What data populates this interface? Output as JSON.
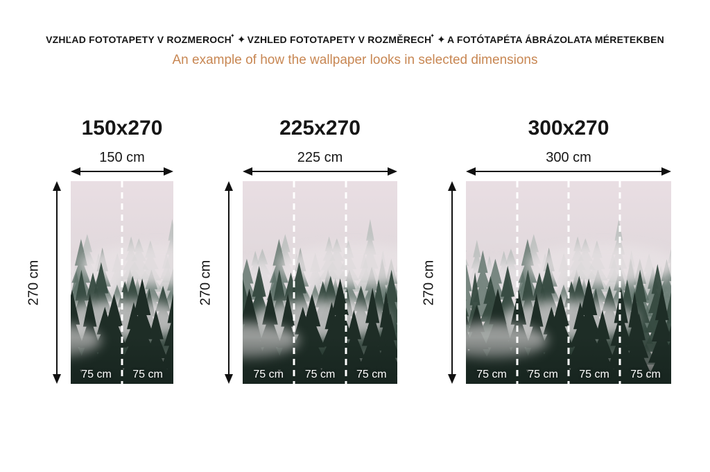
{
  "header": {
    "title_segments": [
      "VZHĽAD FOTOTAPETY V ROZMEROCH",
      "VZHLED FOTOTAPETY V ROZMĚRECH",
      "A FOTÓTAPÉTA ÁBRÁZOLATA MÉRETEKBEN"
    ],
    "divider_icon": "✦",
    "divider_icon_small": "✦",
    "subtitle": "An example of how the wallpaper looks in selected dimensions"
  },
  "colors": {
    "heading": "#161616",
    "subtitle_accent": "#c88753",
    "arrow": "#111111",
    "panel_label": "#ffffff",
    "panel_divider": "#ffffff"
  },
  "artwork": {
    "icon_name": "foggy-forest-wallpaper-image",
    "sky_top": "#e9dee3",
    "sky_mid": "#ddd6d9",
    "sky_bottom": "#cccac7",
    "fog": "#e8e2e5",
    "tree_layers": [
      "#9fada7",
      "#5d7068",
      "#35493f",
      "#1e2d26"
    ],
    "base_shade": "#16231e"
  },
  "variants": [
    {
      "title": "150x270",
      "width_label": "150 cm",
      "height_label": "270 cm",
      "panel_labels": [
        "75 cm",
        "75 cm"
      ]
    },
    {
      "title": "225x270",
      "width_label": "225 cm",
      "height_label": "270 cm",
      "panel_labels": [
        "75 cm",
        "75 cm",
        "75 cm"
      ]
    },
    {
      "title": "300x270",
      "width_label": "300 cm",
      "height_label": "270 cm",
      "panel_labels": [
        "75 cm",
        "75 cm",
        "75 cm",
        "75 cm"
      ]
    }
  ]
}
